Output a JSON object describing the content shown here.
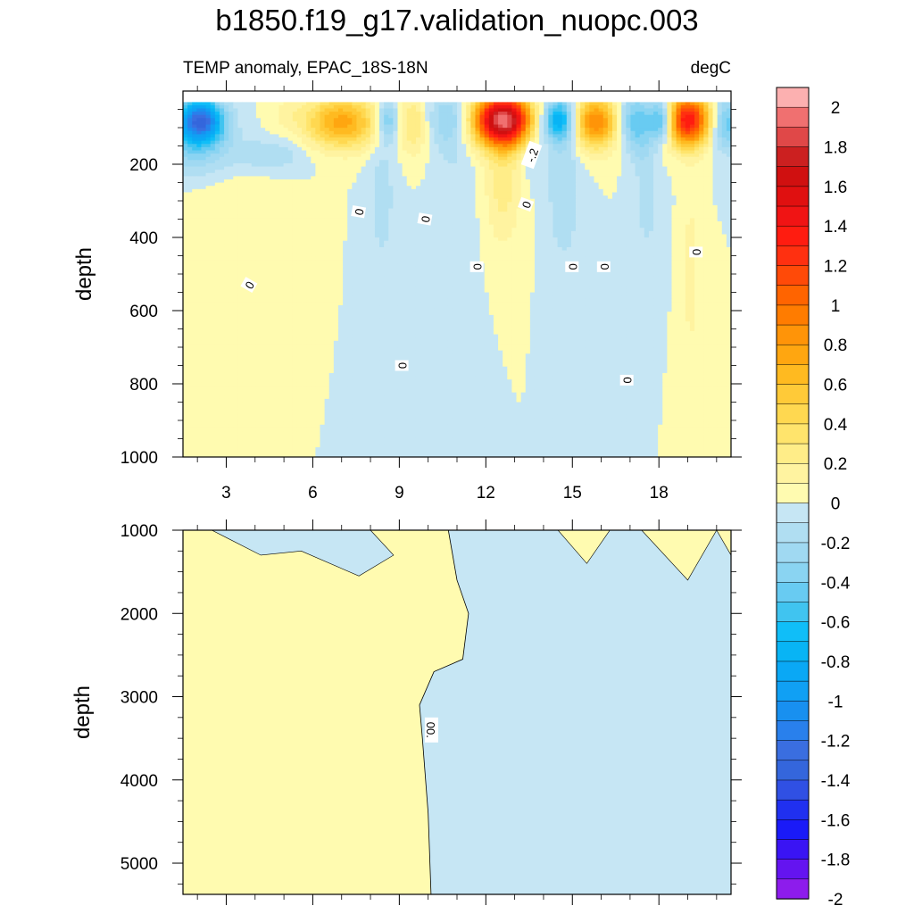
{
  "title": "b1850.f19_g17.validation_nuopc.003",
  "chart_data": {
    "type": "heatmap",
    "title": "b1850.f19_g17.validation_nuopc.003",
    "left_string": "TEMP anomaly, EPAC_18S-18N",
    "right_string": "degC",
    "x": {
      "range": [
        1.5,
        20.5
      ],
      "ticks": [
        3,
        6,
        9,
        12,
        15,
        18
      ],
      "tick_labels": [
        "3",
        "6",
        "9",
        "12",
        "15",
        "18"
      ]
    },
    "panels": [
      {
        "name": "upper",
        "ylabel": "depth",
        "yrange": [
          0,
          1000
        ],
        "y_reversed": true,
        "y_top_value": 30,
        "y_ticks": [
          200,
          400,
          600,
          800,
          1000
        ],
        "y_tick_labels": [
          "200",
          "400",
          "600",
          "800",
          "1000"
        ],
        "contour_labels": [
          {
            "text": "0",
            "x": 3.8,
            "y": 530,
            "rot": -60
          },
          {
            "text": "0",
            "x": 7.6,
            "y": 330,
            "rot": -80
          },
          {
            "text": "0",
            "x": 9.9,
            "y": 350,
            "rot": -80
          },
          {
            "text": "0",
            "x": 9.1,
            "y": 750,
            "rot": -90
          },
          {
            "text": "0",
            "x": 11.7,
            "y": 480,
            "rot": -90
          },
          {
            "text": "0",
            "x": 13.4,
            "y": 310,
            "rot": -70
          },
          {
            "text": "-.2",
            "x": 13.6,
            "y": 175,
            "rot": -70
          },
          {
            "text": "0",
            "x": 15.0,
            "y": 480,
            "rot": -90
          },
          {
            "text": "0",
            "x": 16.1,
            "y": 480,
            "rot": -90
          },
          {
            "text": "0",
            "x": 16.9,
            "y": 790,
            "rot": -90
          },
          {
            "text": "0",
            "x": 19.3,
            "y": 440,
            "rot": -90
          }
        ],
        "blobs": [
          {
            "x": 2.1,
            "y": 80,
            "v": -1.2,
            "sx": 0.55,
            "sy": 40
          },
          {
            "x": 1.9,
            "y": 150,
            "v": -0.35,
            "sx": 0.9,
            "sy": 60
          },
          {
            "x": 4.5,
            "y": 175,
            "v": -0.2,
            "sx": 0.9,
            "sy": 30
          },
          {
            "x": 3.0,
            "y": 320,
            "v": 0.08,
            "sx": 1.2,
            "sy": 90
          },
          {
            "x": 5.1,
            "y": 60,
            "v": 0.1,
            "sx": 0.4,
            "sy": 30
          },
          {
            "x": 7.0,
            "y": 85,
            "v": 0.75,
            "sx": 0.9,
            "sy": 50
          },
          {
            "x": 8.6,
            "y": 80,
            "v": -0.45,
            "sx": 0.25,
            "sy": 40
          },
          {
            "x": 8.4,
            "y": 290,
            "v": -0.15,
            "sx": 0.35,
            "sy": 150
          },
          {
            "x": 9.5,
            "y": 90,
            "v": 0.3,
            "sx": 0.35,
            "sy": 60
          },
          {
            "x": 10.8,
            "y": 80,
            "v": -0.3,
            "sx": 0.6,
            "sy": 50
          },
          {
            "x": 10.9,
            "y": 300,
            "v": -0.1,
            "sx": 0.5,
            "sy": 250
          },
          {
            "x": 12.6,
            "y": 80,
            "v": 1.9,
            "sx": 0.75,
            "sy": 50
          },
          {
            "x": 12.6,
            "y": 250,
            "v": 0.25,
            "sx": 0.45,
            "sy": 120
          },
          {
            "x": 13.6,
            "y": 110,
            "v": -0.2,
            "sx": 0.3,
            "sy": 80
          },
          {
            "x": 14.5,
            "y": 80,
            "v": -0.8,
            "sx": 0.4,
            "sy": 40
          },
          {
            "x": 14.7,
            "y": 250,
            "v": -0.2,
            "sx": 0.4,
            "sy": 160
          },
          {
            "x": 15.8,
            "y": 85,
            "v": 0.9,
            "sx": 0.55,
            "sy": 50
          },
          {
            "x": 17.0,
            "y": 80,
            "v": -0.35,
            "sx": 0.35,
            "sy": 50
          },
          {
            "x": 17.4,
            "y": 100,
            "v": -0.25,
            "sx": 0.3,
            "sy": 70
          },
          {
            "x": 17.6,
            "y": 300,
            "v": -0.15,
            "sx": 0.3,
            "sy": 110
          },
          {
            "x": 18.1,
            "y": 80,
            "v": -0.75,
            "sx": 0.3,
            "sy": 40
          },
          {
            "x": 19.0,
            "y": 80,
            "v": 1.4,
            "sx": 0.55,
            "sy": 50
          },
          {
            "x": 19.1,
            "y": 500,
            "v": 0.15,
            "sx": 0.2,
            "sy": 180
          },
          {
            "x": 20.3,
            "y": 90,
            "v": -0.5,
            "sx": 0.35,
            "sy": 50
          }
        ]
      },
      {
        "name": "lower",
        "ylabel": "depth",
        "yrange": [
          1000,
          5375
        ],
        "y_reversed": true,
        "y_ticks": [
          1000,
          2000,
          3000,
          4000,
          5000
        ],
        "y_tick_labels": [
          "1000",
          "2000",
          "3000",
          "4000",
          "5000"
        ],
        "contour_labels": [
          {
            "text": "00.",
            "x": 10.1,
            "y": 3400,
            "rot": 90
          }
        ],
        "zero_line": [
          [
            10.1,
            5375
          ],
          [
            10.0,
            4400
          ],
          [
            9.8,
            3500
          ],
          [
            9.7,
            3100
          ],
          [
            10.2,
            2700
          ],
          [
            11.2,
            2550
          ],
          [
            11.4,
            2000
          ],
          [
            11.0,
            1600
          ],
          [
            10.7,
            1000
          ]
        ]
      }
    ],
    "colorbar": {
      "orientation": "vertical",
      "labels": [
        "2",
        "1.8",
        "1.6",
        "1.4",
        "1.2",
        "1",
        "0.8",
        "0.6",
        "0.4",
        "0.2",
        "0",
        "-0.2",
        "-0.4",
        "-0.6",
        "-0.8",
        "-1",
        "-1.2",
        "-1.4",
        "-1.6",
        "-1.8",
        "-2"
      ],
      "levels": [
        -2,
        -1.9,
        -1.8,
        -1.7,
        -1.6,
        -1.5,
        -1.4,
        -1.3,
        -1.2,
        -1.1,
        -1,
        -0.9,
        -0.8,
        -0.7,
        -0.6,
        -0.5,
        -0.4,
        -0.3,
        -0.2,
        -0.1,
        0,
        0.1,
        0.2,
        0.3,
        0.4,
        0.5,
        0.6,
        0.7,
        0.8,
        0.9,
        1,
        1.1,
        1.2,
        1.3,
        1.4,
        1.5,
        1.6,
        1.7,
        1.8,
        1.9,
        2
      ],
      "colors": [
        "#8d1cec",
        "#6414f0",
        "#3a14f4",
        "#1a1af8",
        "#2030f0",
        "#3050e4",
        "#3466dc",
        "#3a6ee0",
        "#2980ec",
        "#1890f0",
        "#10a0f4",
        "#0aa8f5",
        "#08b4f5",
        "#10bef8",
        "#40c4f0",
        "#68cbf2",
        "#8ad4f2",
        "#a0d9f2",
        "#b0def2",
        "#c6e6f4",
        "#fffbb0",
        "#fff3a0",
        "#ffed88",
        "#ffe46c",
        "#ffd850",
        "#ffca38",
        "#ffba20",
        "#ffa610",
        "#ff9408",
        "#ff7c00",
        "#ff6400",
        "#ff4a08",
        "#ff3010",
        "#ff1c10",
        "#f01414",
        "#e01010",
        "#d01010",
        "#cc2020",
        "#e04848",
        "#f07070",
        "#fcb0b0"
      ]
    }
  }
}
